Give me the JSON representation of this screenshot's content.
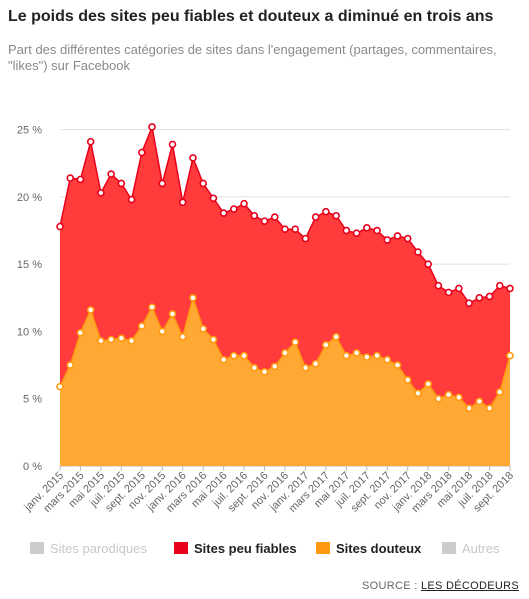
{
  "header": {
    "title": "Le poids des sites peu fiables et douteux a diminué en trois ans",
    "subtitle": "Part des différentes catégories de sites dans l'engagement (partages, commentaires, \"likes\") sur Facebook"
  },
  "colors": {
    "peu_fiables": "#ff3b3b",
    "peu_fiables_line": "#e8001c",
    "douteux": "#ffa834",
    "douteux_line": "#ff9a10",
    "inactive": "#cccccc",
    "grid": "#e0e0e0",
    "axis_text": "#666666"
  },
  "legend": {
    "items": [
      {
        "label": "Sites parodiques",
        "color": "#cccccc",
        "active": false
      },
      {
        "label": "Sites peu fiables",
        "color": "#e8001c",
        "active": true
      },
      {
        "label": "Sites douteux",
        "color": "#ff9a10",
        "active": true
      },
      {
        "label": "Autres",
        "color": "#cccccc",
        "active": false
      }
    ]
  },
  "source": {
    "prefix": "SOURCE : ",
    "link": "LES DÉCODEURS"
  },
  "chart_data": {
    "type": "area",
    "stacked": true,
    "ylim": [
      0,
      27.5
    ],
    "yticks": [
      0,
      5,
      10,
      15,
      20,
      25
    ],
    "ytick_labels": [
      "0 %",
      "5 %",
      "10 %",
      "15 %",
      "20 %",
      "25 %"
    ],
    "x_tick_labels": [
      "janv. 2015",
      "mars 2015",
      "mai 2015",
      "juil. 2015",
      "sept. 2015",
      "nov. 2015",
      "janv. 2016",
      "mars 2016",
      "mai 2016",
      "juil. 2016",
      "sept. 2016",
      "nov. 2016",
      "janv. 2017",
      "mars 2017",
      "mai 2017",
      "juil. 2017",
      "sept. 2017",
      "nov. 2017",
      "janv. 2018",
      "mars 2018",
      "mai 2018",
      "juil. 2018",
      "sept. 2018"
    ],
    "x_tick_every": 2,
    "grid": true,
    "series": [
      {
        "name": "Sites douteux",
        "values": [
          5.9,
          7.5,
          9.9,
          11.6,
          9.3,
          9.4,
          9.5,
          9.3,
          10.4,
          11.8,
          10.0,
          11.3,
          9.6,
          12.5,
          10.2,
          9.4,
          7.9,
          8.2,
          8.2,
          7.3,
          7.0,
          7.4,
          8.4,
          9.2,
          7.3,
          7.6,
          9.0,
          9.6,
          8.2,
          8.4,
          8.1,
          8.2,
          7.9,
          7.5,
          6.4,
          5.4,
          6.1,
          5.0,
          5.3,
          5.1,
          4.3,
          4.8,
          4.3,
          5.5,
          8.2
        ]
      },
      {
        "name": "Sites peu fiables",
        "values": [
          11.9,
          13.9,
          11.4,
          12.5,
          11.0,
          12.3,
          11.5,
          10.5,
          12.9,
          13.4,
          11.0,
          12.6,
          10.0,
          10.4,
          10.8,
          10.5,
          10.9,
          10.9,
          11.3,
          11.3,
          11.2,
          11.1,
          9.2,
          8.4,
          9.6,
          10.9,
          9.9,
          9.0,
          9.3,
          8.9,
          9.6,
          9.3,
          8.9,
          9.6,
          10.5,
          10.5,
          8.9,
          8.4,
          7.6,
          8.1,
          7.8,
          7.7,
          8.3,
          7.9,
          5.0
        ]
      }
    ]
  }
}
